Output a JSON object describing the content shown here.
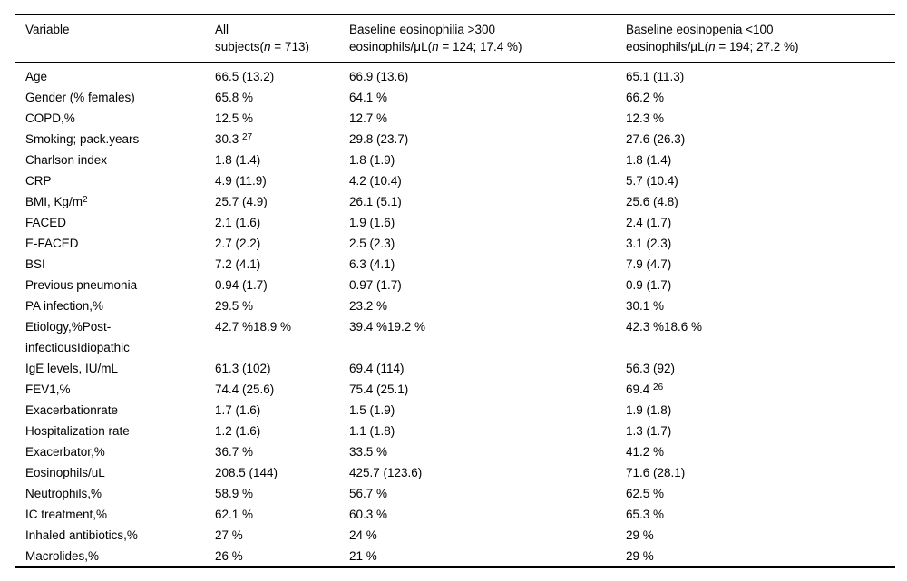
{
  "page": {
    "background_color": "#ffffff",
    "text_color": "#000000",
    "rule_color": "#000000"
  },
  "table": {
    "description": "Baseline characteristics by eosinophil subgroup",
    "columns": [
      {
        "label": "Variable"
      },
      {
        "label": "All\nsubjects(n = 713)"
      },
      {
        "label": "Baseline eosinophilia >300\neosinophils/μL(n = 124; 17.4 %)"
      },
      {
        "label": "Baseline eosinopenia <100\neosinophils/μL(n = 194; 27.2 %)"
      }
    ],
    "rows": [
      {
        "variable": "Age",
        "values": [
          "66.5 (13.2)",
          "66.9 (13.6)",
          "65.1 (11.3)"
        ]
      },
      {
        "variable": "Gender (% females)",
        "values": [
          "65.8 %",
          "64.1 %",
          "66.2 %"
        ]
      },
      {
        "variable": "COPD,%",
        "values": [
          "12.5 %",
          "12.7 %",
          "12.3 %"
        ]
      },
      {
        "variable": "Smoking; pack.years",
        "values": [
          "30.3 ^{27}",
          "29.8 (23.7)",
          "27.6 (26.3)"
        ]
      },
      {
        "variable": "Charlson index",
        "values": [
          "1.8 (1.4)",
          "1.8 (1.9)",
          "1.8 (1.4)"
        ]
      },
      {
        "variable": "CRP",
        "values": [
          "4.9 (11.9)",
          "4.2 (10.4)",
          "5.7 (10.4)"
        ]
      },
      {
        "variable": "BMI, Kg/m^{2}",
        "values": [
          "25.7 (4.9)",
          "26.1 (5.1)",
          "25.6 (4.8)"
        ]
      },
      {
        "variable": "FACED",
        "values": [
          "2.1 (1.6)",
          "1.9 (1.6)",
          "2.4 (1.7)"
        ]
      },
      {
        "variable": "E-FACED",
        "values": [
          "2.7 (2.2)",
          "2.5 (2.3)",
          "3.1 (2.3)"
        ]
      },
      {
        "variable": "BSI",
        "values": [
          "7.2 (4.1)",
          "6.3 (4.1)",
          "7.9 (4.7)"
        ]
      },
      {
        "variable": "Previous pneumonia",
        "values": [
          "0.94 (1.7)",
          "0.97 (1.7)",
          "0.9 (1.7)"
        ]
      },
      {
        "variable": "PA infection,%",
        "values": [
          "29.5 %",
          "23.2 %",
          "30.1 %"
        ]
      },
      {
        "variable": "Etiology,%Post-\ninfectiousIdiopathic",
        "values": [
          "42.7 %18.9 %",
          "39.4 %19.2 %",
          "42.3 %18.6 %"
        ]
      },
      {
        "variable": "IgE levels, IU/mL",
        "values": [
          "61.3 (102)",
          "69.4 (114)",
          "56.3 (92)"
        ]
      },
      {
        "variable": "FEV1,%",
        "values": [
          "74.4 (25.6)",
          "75.4 (25.1)",
          "69.4 ^{26}"
        ]
      },
      {
        "variable": "Exacerbationrate",
        "values": [
          "1.7 (1.6)",
          "1.5 (1.9)",
          "1.9 (1.8)"
        ]
      },
      {
        "variable": "Hospitalization rate",
        "values": [
          "1.2 (1.6)",
          "1.1 (1.8)",
          "1.3 (1.7)"
        ]
      },
      {
        "variable": "Exacerbator,%",
        "values": [
          "36.7 %",
          "33.5 %",
          "41.2 %"
        ]
      },
      {
        "variable": "Eosinophils/uL",
        "values": [
          "208.5 (144)",
          "425.7 (123.6)",
          "71.6 (28.1)"
        ]
      },
      {
        "variable": "Neutrophils,%",
        "values": [
          "58.9 %",
          "56.7 %",
          "62.5 %"
        ]
      },
      {
        "variable": "IC treatment,%",
        "values": [
          "62.1 %",
          "60.3 %",
          "65.3 %"
        ]
      },
      {
        "variable": "Inhaled antibiotics,%",
        "values": [
          "27 %",
          "24 %",
          "29 %"
        ]
      },
      {
        "variable": "Macrolides,%",
        "values": [
          "26 %",
          "21 %",
          "29 %"
        ]
      }
    ]
  }
}
